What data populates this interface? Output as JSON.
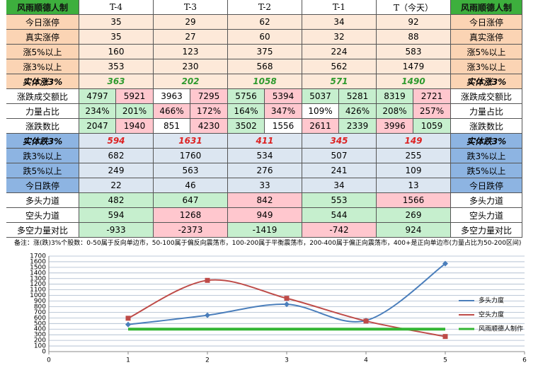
{
  "table": {
    "header": [
      "风雨顺德人制",
      "T-4",
      "T-3",
      "T-2",
      "T-1",
      "T（今天）",
      "风雨顺德人制"
    ],
    "rows": [
      {
        "label": "今日涨停",
        "cells": [
          "35",
          "29",
          "62",
          "34",
          "92"
        ]
      },
      {
        "label": "真实涨停",
        "cells": [
          "35",
          "27",
          "60",
          "32",
          "88"
        ]
      },
      {
        "label": "涨5%以上",
        "cells": [
          "160",
          "123",
          "375",
          "224",
          "583"
        ]
      },
      {
        "label": "涨3%以上",
        "cells": [
          "353",
          "230",
          "568",
          "562",
          "1479"
        ]
      },
      {
        "label": "实体涨3%",
        "cells": [
          "363",
          "202",
          "1058",
          "571",
          "1490"
        ]
      },
      {
        "label": "涨跌成交额比",
        "cells": [
          [
            "4797",
            "5921"
          ],
          [
            "3963",
            "7295"
          ],
          [
            "5756",
            "5394"
          ],
          [
            "5037",
            "5281"
          ],
          [
            "8319",
            "2721"
          ]
        ]
      },
      {
        "label": "力量占比",
        "cells": [
          [
            "234%",
            "201%"
          ],
          [
            "466%",
            "172%"
          ],
          [
            "164%",
            "347%"
          ],
          [
            "109%",
            "426%"
          ],
          [
            "208%",
            "257%"
          ]
        ]
      },
      {
        "label": "涨跌数比",
        "cells": [
          [
            "2047",
            "1940"
          ],
          [
            "851",
            "4230"
          ],
          [
            "3502",
            "1556"
          ],
          [
            "2611",
            "2339"
          ],
          [
            "3996",
            "1059"
          ]
        ]
      },
      {
        "label": "实体跌3%",
        "cells": [
          "594",
          "1631",
          "411",
          "345",
          "149"
        ]
      },
      {
        "label": "跌3%以上",
        "cells": [
          "682",
          "1760",
          "534",
          "507",
          "255"
        ]
      },
      {
        "label": "跌5%以上",
        "cells": [
          "249",
          "563",
          "276",
          "241",
          "109"
        ]
      },
      {
        "label": "今日跌停",
        "cells": [
          "22",
          "46",
          "33",
          "34",
          "13"
        ]
      },
      {
        "label": "多头力道",
        "cells": [
          "482",
          "647",
          "842",
          "553",
          "1566"
        ]
      },
      {
        "label": "空头力道",
        "cells": [
          "594",
          "1268",
          "949",
          "544",
          "269"
        ]
      },
      {
        "label": "多空力量对比",
        "cells": [
          "-933",
          "-2373",
          "-1419",
          "-742",
          "924"
        ]
      }
    ],
    "note": "备注：涨(跌)3%个股数：0-50属于反向单边市，50-100属于偏反向震荡市，100-200属于平衡震荡市，200-400属于偏正向震荡市，400+是正向单边市(力量占比为50-200区间)"
  },
  "chart_data": {
    "type": "line",
    "x": [
      1,
      2,
      3,
      4,
      5
    ],
    "series": [
      {
        "name": "多头力度",
        "color": "#4a7ebb",
        "values": [
          482,
          647,
          842,
          553,
          1566
        ]
      },
      {
        "name": "空头力度",
        "color": "#be4b48",
        "values": [
          594,
          1268,
          949,
          544,
          269
        ]
      },
      {
        "name": "风雨顺德人制作",
        "color": "#33b533",
        "values": [
          400,
          400,
          400,
          400,
          400
        ]
      }
    ],
    "xlim": [
      0,
      6
    ],
    "xticks": [
      0,
      1,
      2,
      3,
      4,
      5,
      6
    ],
    "ylim": [
      0,
      1700
    ],
    "yticks": [
      0,
      100,
      200,
      300,
      400,
      500,
      600,
      700,
      800,
      900,
      1000,
      1100,
      1200,
      1300,
      1400,
      1500,
      1600,
      1700
    ],
    "grid": true,
    "legend": "right"
  }
}
